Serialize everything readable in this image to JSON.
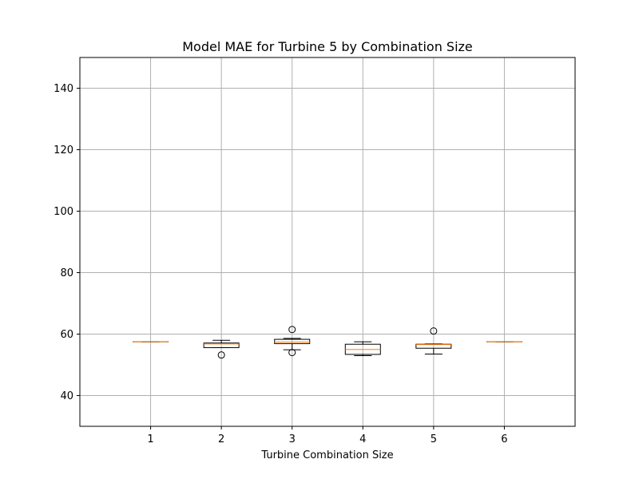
{
  "chart_data": {
    "type": "boxplot",
    "title": "Model MAE for Turbine 5 by Combination Size",
    "xlabel": "Turbine Combination Size",
    "ylabel": "",
    "ylim": [
      30,
      150
    ],
    "yticks": [
      40,
      60,
      80,
      100,
      120,
      140
    ],
    "grid": true,
    "categories": [
      "1",
      "2",
      "3",
      "4",
      "5",
      "6"
    ],
    "boxes": [
      {
        "category": "1",
        "whislo": 57.5,
        "q1": 57.5,
        "med": 57.5,
        "q3": 57.5,
        "whishi": 57.5,
        "fliers": []
      },
      {
        "category": "2",
        "whislo": 55.6,
        "q1": 55.6,
        "med": 56.8,
        "q3": 57.1,
        "whishi": 58.0,
        "fliers": [
          53.2
        ]
      },
      {
        "category": "3",
        "whislo": 54.9,
        "q1": 56.9,
        "med": 57.4,
        "q3": 58.3,
        "whishi": 58.6,
        "fliers": [
          61.5,
          54.0
        ]
      },
      {
        "category": "4",
        "whislo": 53.0,
        "q1": 53.4,
        "med": 55.0,
        "q3": 56.7,
        "whishi": 57.5,
        "fliers": []
      },
      {
        "category": "5",
        "whislo": 53.5,
        "q1": 55.4,
        "med": 56.6,
        "q3": 56.7,
        "whishi": 56.8,
        "fliers": [
          61.0
        ]
      },
      {
        "category": "6",
        "whislo": 57.5,
        "q1": 57.5,
        "med": 57.5,
        "q3": 57.5,
        "whishi": 57.5,
        "fliers": []
      }
    ],
    "colors": {
      "box": "#000000",
      "median": "#ff7f0e",
      "grid": "#b0b0b0"
    }
  }
}
